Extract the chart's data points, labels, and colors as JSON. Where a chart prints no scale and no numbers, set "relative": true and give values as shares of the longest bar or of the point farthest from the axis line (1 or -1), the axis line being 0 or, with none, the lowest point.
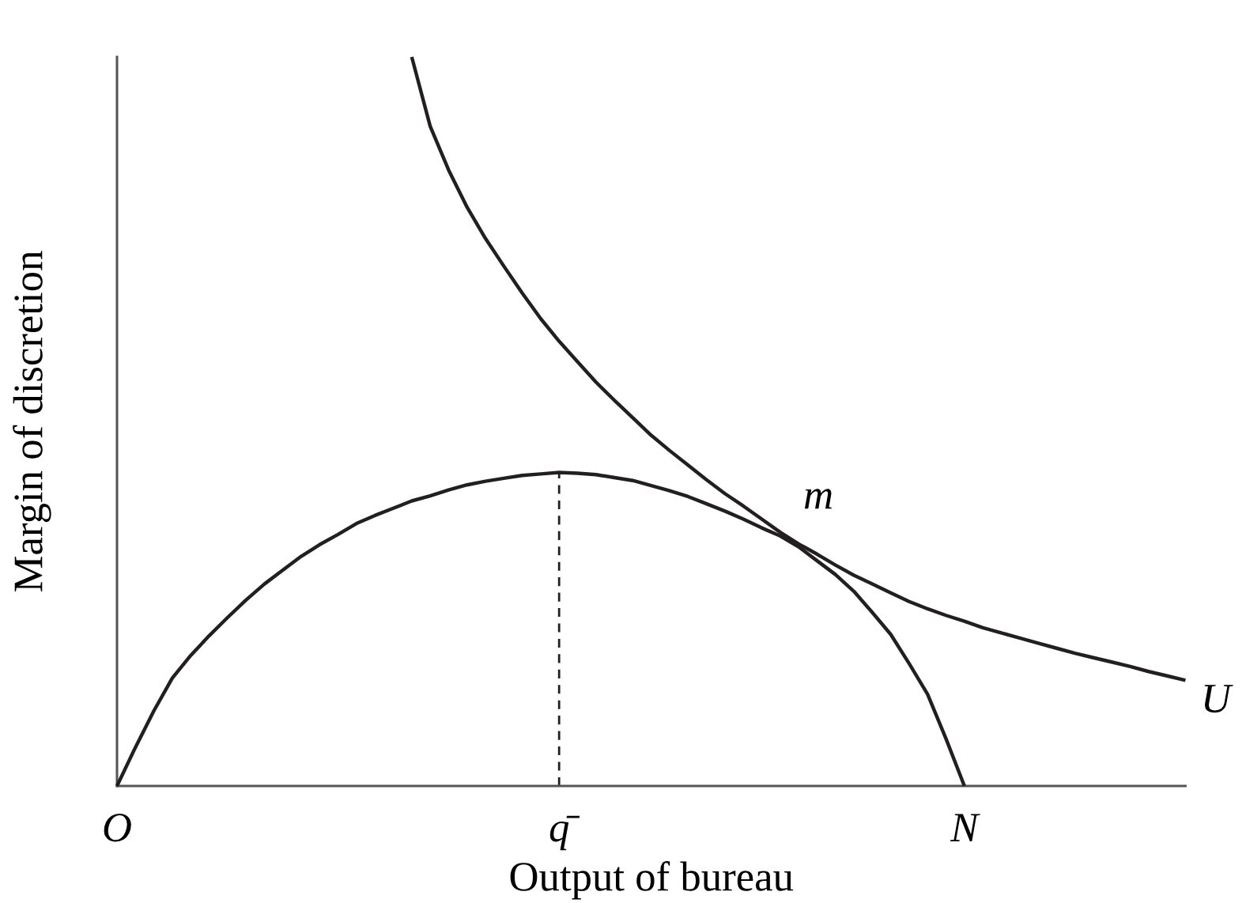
{
  "chart_data": {
    "type": "line",
    "relative": true,
    "xlabel": "Output of bureau",
    "ylabel": "Margin of discretion",
    "categories": [
      "O",
      null,
      null,
      null,
      null,
      null,
      null,
      null,
      null,
      null,
      null,
      null,
      null,
      null,
      null,
      null,
      null,
      null,
      null,
      null,
      null,
      null,
      null,
      null,
      "q̄",
      null,
      null,
      null,
      null,
      null,
      null,
      null,
      null,
      null,
      null,
      null,
      null,
      null,
      null,
      null,
      null,
      null,
      null,
      null,
      null,
      null,
      "N",
      null,
      null,
      null,
      null,
      null,
      null,
      null,
      null,
      null,
      null,
      null,
      null
    ],
    "tick_labels": "x",
    "marker": "none",
    "line_style": "solid",
    "series": [
      {
        "color": "#231f20",
        "values": [
          0,
          0.053,
          0.103,
          0.148,
          0.179,
          0.206,
          0.231,
          0.255,
          0.277,
          0.296,
          0.315,
          0.331,
          0.345,
          0.36,
          0.371,
          0.381,
          0.391,
          0.398,
          0.406,
          0.413,
          0.418,
          0.422,
          0.426,
          0.428,
          0.43,
          0.429,
          0.427,
          0.423,
          0.419,
          0.412,
          0.405,
          0.397,
          0.387,
          0.377,
          0.366,
          0.354,
          0.343,
          0.328,
          0.309,
          0.29,
          0.267,
          0.238,
          0.208,
          0.168,
          0.126,
          0.065,
          0,
          null,
          null,
          null,
          null,
          null,
          null,
          null,
          null,
          null,
          null,
          null,
          null
        ]
      },
      {
        "name": "U",
        "color": "#231f20",
        "values": [
          null,
          null,
          null,
          null,
          null,
          null,
          null,
          null,
          null,
          null,
          null,
          null,
          null,
          null,
          null,
          null,
          1.0,
          0.905,
          0.845,
          0.794,
          0.751,
          0.713,
          0.676,
          0.641,
          0.61,
          0.582,
          0.554,
          0.529,
          0.505,
          0.481,
          0.46,
          0.44,
          0.42,
          0.401,
          0.384,
          0.366,
          0.348,
          0.332,
          0.318,
          0.303,
          0.289,
          0.277,
          0.265,
          0.253,
          0.243,
          0.234,
          0.226,
          0.217,
          0.21,
          0.203,
          0.196,
          0.189,
          0.182,
          0.176,
          0.17,
          0.164,
          0.157,
          0.151,
          0.145
        ]
      }
    ],
    "ref_lines": [
      {
        "axis": "x",
        "value": "q̄",
        "color": "#231f20",
        "line_style": "dashed"
      }
    ],
    "annotations": [
      "m"
    ]
  }
}
